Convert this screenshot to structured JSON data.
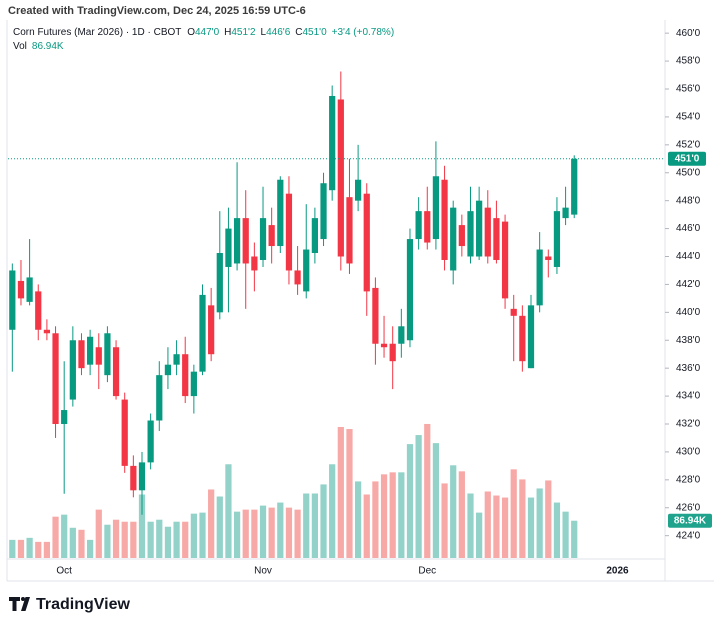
{
  "header": {
    "created": "Created with TradingView.com, Dec 24, 2025 16:59 UTC-6",
    "symbol": "Corn Futures (Mar 2026) · 1D · CBOT",
    "ohlc": [
      {
        "key": "O",
        "value": "447'0"
      },
      {
        "key": "H",
        "value": "451'2"
      },
      {
        "key": "L",
        "value": "446'6"
      }
    ],
    "close_key": "C",
    "change": "+3'4 (+0.78%)",
    "vol_key": "Vol"
  },
  "footer": {
    "brand": "TradingView"
  },
  "chart_data": {
    "type": "candlestick",
    "up_color": "#089981",
    "down_color": "#f23645",
    "volume_up_color": "#92d2c9",
    "volume_down_color": "#f7a9a7",
    "categories": [
      null,
      null,
      null,
      null,
      null,
      null,
      "Oct",
      null,
      null,
      null,
      null,
      null,
      null,
      null,
      null,
      null,
      null,
      null,
      null,
      null,
      null,
      null,
      null,
      null,
      null,
      null,
      null,
      null,
      null,
      "Nov",
      null,
      null,
      null,
      null,
      null,
      null,
      null,
      null,
      null,
      null,
      null,
      null,
      null,
      null,
      null,
      null,
      null,
      null,
      "Dec",
      null,
      null,
      null,
      null,
      null,
      null,
      null,
      null,
      null,
      null,
      null,
      null,
      null,
      null,
      null,
      null,
      null,
      null,
      null,
      null,
      null,
      "2026",
      null,
      null,
      null,
      null,
      null
    ],
    "open": [
      438.75,
      442.25,
      440.75,
      441.5,
      438.75,
      438.5,
      432,
      433.75,
      438,
      436.25,
      437.5,
      435.5,
      437.5,
      433.75,
      429,
      427.25,
      429.25,
      432.25,
      435.5,
      436.25,
      437,
      434,
      435.75,
      440.5,
      440,
      443.25,
      443.5,
      446.75,
      444,
      443.75,
      446.25,
      444.75,
      448.5,
      443,
      441.5,
      444.25,
      445.25,
      448.75,
      455.25,
      448.25,
      448,
      448.5,
      441.75,
      437.75,
      437.75,
      437.75,
      438,
      445.25,
      447.25,
      445.25,
      449.5,
      443,
      446.25,
      444,
      444,
      447.5,
      446.75,
      446.5,
      440.25,
      439.75,
      436,
      440.5,
      444,
      443.25,
      446.75,
      447,
      null,
      null,
      null,
      null,
      null,
      null,
      null,
      null,
      null,
      null
    ],
    "high": [
      443.5,
      443.75,
      445.25,
      442,
      439.5,
      439,
      436.5,
      439,
      438.5,
      438.75,
      438.5,
      439,
      438,
      434.25,
      429.75,
      430,
      432.75,
      436.5,
      437.5,
      438,
      438.25,
      436.25,
      442,
      441.75,
      447.25,
      447.5,
      450.75,
      448.75,
      445,
      449,
      447.5,
      449.75,
      449.75,
      444.75,
      447.75,
      447.5,
      450,
      456.25,
      457.25,
      451,
      452,
      449.25,
      442.5,
      439.75,
      439,
      440.25,
      446,
      448.25,
      449,
      452.25,
      450.5,
      448,
      447,
      449,
      449,
      448.75,
      448,
      447,
      441.25,
      440.5,
      441.25,
      445.75,
      444.5,
      448.25,
      449,
      451.25,
      null,
      null,
      null,
      null,
      null,
      null,
      null,
      null,
      null,
      null
    ],
    "low": [
      435.75,
      440.5,
      440.5,
      438,
      438,
      431,
      427,
      433.25,
      435.5,
      435.5,
      434.5,
      435,
      433.75,
      428.5,
      426.75,
      425.5,
      428.75,
      431.5,
      434.5,
      435.5,
      433.5,
      432.75,
      435.5,
      436.5,
      439.5,
      440,
      443,
      440.25,
      441.5,
      443.25,
      443.5,
      444.25,
      442,
      441.25,
      441,
      443.5,
      444.75,
      448,
      443,
      442.75,
      447.25,
      439.75,
      436.25,
      436.75,
      434.5,
      436.75,
      437.5,
      444.5,
      444.5,
      444.5,
      443,
      442,
      444,
      443.5,
      443.75,
      443.5,
      443.5,
      440.25,
      436.5,
      435.75,
      436,
      440,
      442.5,
      442.75,
      446.25,
      446.75,
      null,
      null,
      null,
      null,
      null,
      null,
      null,
      null,
      null,
      null
    ],
    "close": [
      443,
      441,
      442.5,
      438.75,
      438.5,
      432,
      433,
      438,
      436,
      438.25,
      436.25,
      438.5,
      434,
      429,
      427.25,
      429.25,
      432.25,
      435.5,
      436.25,
      437,
      434,
      435.75,
      441.25,
      437,
      444.25,
      446,
      446.75,
      443.5,
      443,
      446.75,
      444.75,
      449.5,
      443,
      442,
      444.5,
      446.75,
      449.25,
      455.5,
      444,
      443.5,
      449.5,
      441.5,
      437.75,
      437.5,
      436.5,
      439,
      445.25,
      447.25,
      445,
      449.75,
      443.75,
      447.5,
      444.75,
      447.25,
      448,
      444,
      443.75,
      441,
      439.75,
      436.5,
      440.5,
      444.5,
      443.75,
      447.25,
      447.5,
      451,
      null,
      null,
      null,
      null,
      null,
      null,
      null,
      null,
      null,
      null
    ],
    "volume": [
      42300,
      42300,
      47000,
      37600,
      37600,
      96400,
      101100,
      70500,
      65800,
      42300,
      112800,
      77600,
      89300,
      84600,
      84600,
      148100,
      84600,
      89300,
      72900,
      84600,
      84600,
      103400,
      105800,
      159800,
      143400,
      218600,
      108100,
      112800,
      112800,
      122200,
      117500,
      129300,
      117500,
      112800,
      150400,
      150400,
      171600,
      218600,
      305500,
      300800,
      178600,
      148100,
      178600,
      195100,
      199800,
      199800,
      265600,
      286700,
      312600,
      267900,
      173900,
      216200,
      202100,
      150400,
      105800,
      155100,
      145700,
      141000,
      206800,
      183300,
      141000,
      162200,
      180900,
      129300,
      108100,
      86940,
      null,
      null,
      null,
      null,
      null,
      null,
      null,
      null,
      null,
      null
    ],
    "last_label": "451'0",
    "volume_label": "86.94K",
    "ylim": [
      422.4,
      460.8
    ],
    "y2lim": [
      0,
      1250000
    ],
    "yticks": [
      {
        "value": 424,
        "label": "424'0"
      },
      {
        "value": 426,
        "label": "426'0"
      },
      {
        "value": 428,
        "label": "428'0"
      },
      {
        "value": 430,
        "label": "430'0"
      },
      {
        "value": 432,
        "label": "432'0"
      },
      {
        "value": 434,
        "label": "434'0"
      },
      {
        "value": 436,
        "label": "436'0"
      },
      {
        "value": 438,
        "label": "438'0"
      },
      {
        "value": 440,
        "label": "440'0"
      },
      {
        "value": 442,
        "label": "442'0"
      },
      {
        "value": 444,
        "label": "444'0"
      },
      {
        "value": 446,
        "label": "446'0"
      },
      {
        "value": 448,
        "label": "448'0"
      },
      {
        "value": 450,
        "label": "450'0"
      },
      {
        "value": 452,
        "label": "452'0"
      },
      {
        "value": 454,
        "label": "454'0"
      },
      {
        "value": 456,
        "label": "456'0"
      },
      {
        "value": 458,
        "label": "458'0"
      },
      {
        "value": 460,
        "label": "460'0"
      }
    ],
    "grid": false
  }
}
